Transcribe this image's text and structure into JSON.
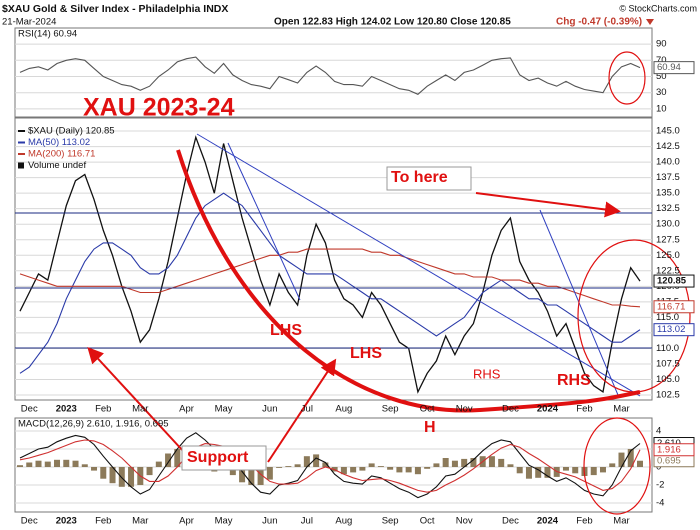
{
  "header": {
    "symbol_title": "$XAU Gold & Silver Index - Philadelphia INDX",
    "date": "21-Mar-2024",
    "ohlc": "Open 122.83 High 124.02 Low 120.80 Close 120.85",
    "change": "Chg -0.47 (-0.39%)",
    "credit": "© StockCharts.com"
  },
  "annotations": {
    "title": "XAU 2023-24",
    "to_here": "To here",
    "lhs_1": "LHS",
    "lhs_2": "LHS",
    "rhs_1": "RHS",
    "rhs_2": "RHS",
    "head": "H",
    "support": "Support"
  },
  "chart_data": [
    {
      "type": "line",
      "title": "RSI(14) 60.94",
      "ylim": [
        0,
        100
      ],
      "yticks": [
        10,
        30,
        50,
        70,
        90
      ],
      "grid": true,
      "series": [
        {
          "color": "#555555",
          "values": [
            55,
            60,
            62,
            58,
            66,
            70,
            72,
            70,
            60,
            50,
            45,
            40,
            38,
            33,
            38,
            50,
            58,
            68,
            72,
            74,
            62,
            54,
            66,
            52,
            45,
            40,
            38,
            35,
            50,
            46,
            42,
            55,
            63,
            55,
            44,
            40,
            40,
            38,
            50,
            45,
            40,
            35,
            33,
            28,
            38,
            45,
            52,
            45,
            55,
            58,
            64,
            70,
            72,
            73,
            52,
            45,
            48,
            42,
            38,
            44,
            38,
            34,
            32,
            30,
            50,
            62,
            66,
            60.94
          ]
        }
      ]
    },
    {
      "type": "line",
      "ylim": [
        101.7,
        147.1
      ],
      "grid": true,
      "yticks": [
        102.5,
        {
          "value": 105,
          "label": "105.0"
        },
        107.5,
        {
          "value": 110,
          "label": "110.0"
        },
        112.5,
        {
          "value": 115,
          "label": "115.0"
        },
        117.5,
        {
          "value": 120,
          "label": "120.0"
        },
        122.5,
        {
          "value": 125,
          "label": "125.0"
        },
        127.5,
        {
          "value": 130,
          "label": "130.0"
        },
        132.5,
        {
          "value": 135,
          "label": "135.0"
        },
        137.5,
        {
          "value": 140,
          "label": "140.0"
        },
        142.5,
        {
          "value": 145,
          "label": "145.0"
        }
      ],
      "categories": [
        null,
        "Dec",
        null,
        null,
        null,
        "2023",
        null,
        null,
        null,
        "Feb",
        null,
        null,
        null,
        "Mar",
        null,
        null,
        null,
        null,
        "Apr",
        null,
        null,
        null,
        "May",
        null,
        null,
        null,
        null,
        "Jun",
        null,
        null,
        null,
        "Jul",
        null,
        null,
        null,
        "Aug",
        null,
        null,
        null,
        null,
        "Sep",
        null,
        null,
        null,
        "Oct",
        null,
        null,
        null,
        "Nov",
        null,
        null,
        null,
        null,
        "Dec",
        null,
        null,
        null,
        "2024",
        null,
        null,
        null,
        "Feb",
        null,
        null,
        null,
        "Mar",
        null,
        null
      ],
      "legend_extra": "Volume undef",
      "series": [
        {
          "name": "$XAU (Daily) 120.85",
          "color": "#111111",
          "values": [
            116,
            119,
            122,
            121,
            127,
            133,
            137,
            138,
            134,
            129,
            125,
            120,
            116,
            111,
            113,
            118,
            124,
            131,
            138,
            144,
            140,
            135,
            143,
            137,
            131,
            126,
            121,
            117,
            122,
            119,
            117,
            125,
            130,
            127,
            121,
            118,
            117,
            115,
            119,
            117,
            114,
            111,
            110,
            103,
            106,
            108,
            112,
            109,
            112,
            114,
            119,
            125,
            129,
            131,
            124,
            121,
            119,
            116,
            112,
            114,
            110,
            106,
            104,
            103,
            111,
            118,
            123,
            120.85
          ]
        },
        {
          "name": "MA(50) 113.02",
          "color": "#2a3aa8",
          "values": [
            106,
            107,
            109,
            111,
            114,
            118,
            121,
            124,
            126,
            127,
            127,
            126,
            125,
            123,
            122,
            122,
            123,
            125,
            128,
            131,
            133,
            134,
            135,
            134,
            133,
            131,
            129,
            127,
            125,
            124,
            123,
            122,
            122,
            122,
            122,
            121,
            120,
            119,
            118,
            118,
            117,
            116,
            115,
            114,
            113,
            112,
            113,
            114,
            115,
            117,
            119,
            120,
            121,
            120,
            119,
            118,
            118,
            117,
            117,
            116,
            115,
            114,
            113,
            112,
            111,
            111,
            112,
            113.02
          ]
        },
        {
          "name": "MA(200) 116.71",
          "color": "#c0392b",
          "values": [
            122,
            121.5,
            121,
            120.5,
            120,
            120,
            120,
            120,
            120,
            120,
            120,
            120,
            119.5,
            119,
            119,
            119,
            119.5,
            120,
            120.5,
            121,
            121.5,
            122,
            122.5,
            123,
            123.5,
            124,
            124.5,
            125,
            125,
            125.5,
            125.5,
            126,
            126,
            126,
            126,
            126,
            126,
            126,
            125.5,
            125.5,
            125,
            125,
            124.5,
            124,
            123.5,
            123,
            122.5,
            122,
            122,
            121.5,
            121.5,
            121.5,
            121,
            121,
            121,
            120.5,
            120.5,
            120,
            120,
            119.5,
            119,
            118.5,
            118,
            117.5,
            117,
            117,
            116.8,
            116.71
          ]
        }
      ]
    },
    {
      "type": "line",
      "title": "MACD(12,26,9) 2.610, 1.916, 0.695",
      "ylim": [
        -5,
        5
      ],
      "yticks": [
        -4,
        -2,
        0,
        2,
        4
      ],
      "grid": true,
      "series": [
        {
          "type": "bar",
          "color": "#8c7a5a",
          "last_label": "0.695",
          "values": [
            0.2,
            0.5,
            0.7,
            0.6,
            0.8,
            0.8,
            0.7,
            0.3,
            -0.4,
            -1.3,
            -1.8,
            -2.2,
            -2.2,
            -2.0,
            -0.9,
            0.6,
            1.5,
            2.0,
            2.0,
            1.6,
            0.4,
            -0.5,
            -0.1,
            -0.9,
            -1.7,
            -2.0,
            -2.0,
            -1.4,
            -0.1,
            0.1,
            0.3,
            1.2,
            1.4,
            0.5,
            -0.5,
            -0.8,
            -0.6,
            -0.4,
            0.4,
            0.1,
            -0.3,
            -0.6,
            -0.6,
            -0.8,
            -0.2,
            0.4,
            1.0,
            0.7,
            0.9,
            1.0,
            1.2,
            1.2,
            0.9,
            0.3,
            -0.7,
            -1.3,
            -1.2,
            -1.2,
            -1.1,
            -0.4,
            -0.7,
            -1.0,
            -0.9,
            -0.6,
            0.4,
            1.6,
            2.0,
            0.695
          ]
        },
        {
          "color": "#111111",
          "last_label": "2.610",
          "values": [
            1.0,
            1.5,
            2.0,
            2.2,
            2.8,
            3.2,
            3.5,
            3.3,
            2.5,
            1.2,
            0,
            -1.2,
            -2.2,
            -3.0,
            -2.5,
            -1.0,
            0.5,
            2.0,
            3.2,
            3.8,
            3.0,
            2.0,
            2.2,
            1.0,
            -0.5,
            -1.8,
            -2.8,
            -3.0,
            -2.0,
            -1.8,
            -1.5,
            0,
            1.0,
            0.5,
            -0.8,
            -1.6,
            -1.8,
            -1.9,
            -1.0,
            -1.2,
            -1.8,
            -2.4,
            -2.8,
            -3.4,
            -3.0,
            -2.2,
            -1.0,
            -0.8,
            0,
            0.8,
            1.8,
            2.6,
            3.0,
            2.8,
            1.5,
            0.2,
            -0.3,
            -1.0,
            -1.6,
            -1.2,
            -1.8,
            -2.6,
            -3.0,
            -3.2,
            -2.0,
            0,
            1.8,
            2.61
          ]
        },
        {
          "color": "#d03030",
          "last_label": "1.916",
          "values": [
            0.8,
            1.0,
            1.3,
            1.6,
            2.0,
            2.4,
            2.8,
            3.0,
            2.9,
            2.5,
            1.8,
            1.0,
            0,
            -1.0,
            -1.6,
            -1.6,
            -1.0,
            0,
            1.2,
            2.2,
            2.6,
            2.5,
            2.3,
            1.9,
            1.2,
            0.2,
            -0.8,
            -1.6,
            -1.9,
            -1.9,
            -1.8,
            -1.2,
            -0.4,
            0,
            -0.3,
            -0.8,
            -1.2,
            -1.5,
            -1.4,
            -1.3,
            -1.5,
            -1.8,
            -2.2,
            -2.6,
            -2.8,
            -2.6,
            -2.0,
            -1.5,
            -0.9,
            -0.2,
            0.6,
            1.4,
            2.1,
            2.5,
            2.2,
            1.5,
            0.9,
            0.2,
            -0.5,
            -0.8,
            -1.1,
            -1.6,
            -2.1,
            -2.6,
            -2.4,
            -1.6,
            -0.2,
            1.916
          ]
        }
      ]
    }
  ]
}
